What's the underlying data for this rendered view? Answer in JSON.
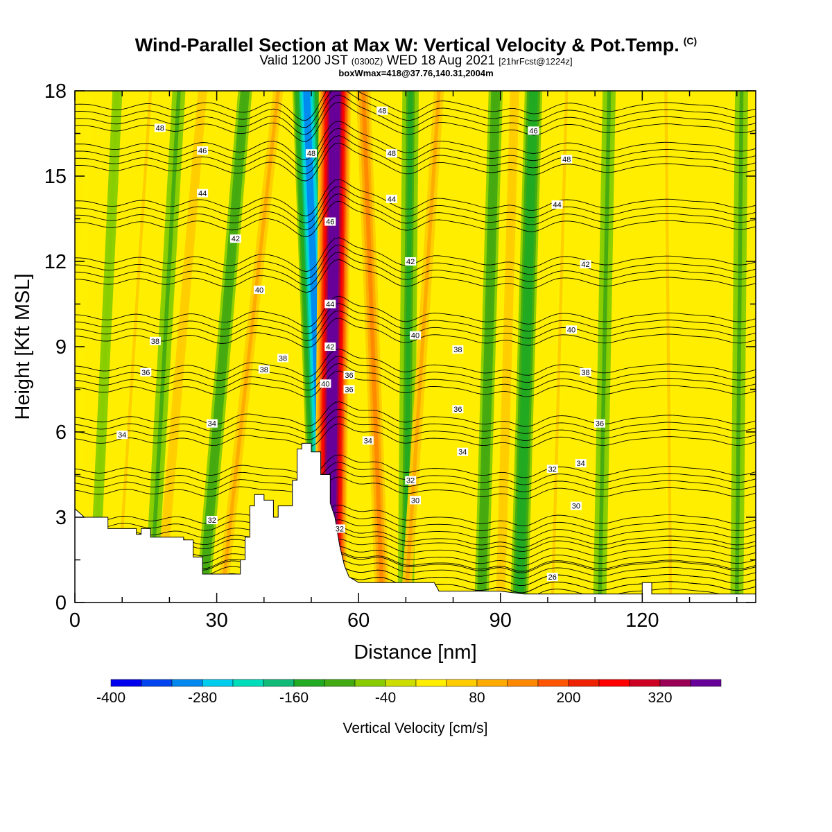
{
  "title": {
    "line1": "Wind-Parallel Section at Max W: Vertical Velocity & Pot.Temp.",
    "copyright": "(C)",
    "line2_a": "Valid 1200 JST",
    "line2_b": "(0300Z)",
    "line2_c": "WED 18 Aug 2021",
    "line2_d": "[21hrFcst@1224z]",
    "line3": "boxWmax=418@37.76,140.31,2004m"
  },
  "chart_data": {
    "type": "heatmap",
    "xlabel": "Distance [nm]",
    "ylabel": "Height [Kft MSL]",
    "xlim": [
      0,
      144
    ],
    "ylim": [
      0,
      18
    ],
    "x_ticks": [
      0,
      30,
      60,
      90,
      120
    ],
    "y_ticks": [
      0,
      3,
      6,
      9,
      12,
      15,
      18
    ],
    "colorbar": {
      "label": "Vertical Velocity [cm/s]",
      "range": [
        -400,
        400
      ],
      "tick_labels": [
        -400,
        -280,
        -160,
        -40,
        80,
        200,
        320
      ],
      "colors": [
        "#0000ee",
        "#0044ee",
        "#0088ee",
        "#00ccee",
        "#00ddbb",
        "#11bb77",
        "#22aa22",
        "#44aa11",
        "#88cc00",
        "#ccdd00",
        "#ffee00",
        "#ffcc00",
        "#ffaa00",
        "#ff8800",
        "#ff5500",
        "#ee2200",
        "#ff0000",
        "#cc0022",
        "#990055",
        "#660099"
      ]
    },
    "terrain_kft": [
      [
        0,
        3.3
      ],
      [
        2,
        3.0
      ],
      [
        7,
        3.0
      ],
      [
        7,
        2.6
      ],
      [
        13,
        2.6
      ],
      [
        13,
        2.4
      ],
      [
        14,
        2.4
      ],
      [
        14,
        2.6
      ],
      [
        16,
        2.6
      ],
      [
        16,
        2.3
      ],
      [
        23,
        2.3
      ],
      [
        23,
        2.2
      ],
      [
        25,
        2.2
      ],
      [
        25,
        1.6
      ],
      [
        27,
        1.6
      ],
      [
        27,
        1.0
      ],
      [
        35,
        1.0
      ],
      [
        35,
        1.5
      ],
      [
        36,
        1.5
      ],
      [
        36,
        2.3
      ],
      [
        37,
        2.3
      ],
      [
        37,
        3.4
      ],
      [
        38,
        3.4
      ],
      [
        38,
        3.8
      ],
      [
        40,
        3.8
      ],
      [
        40,
        3.6
      ],
      [
        42,
        3.6
      ],
      [
        42,
        3.0
      ],
      [
        43,
        3.0
      ],
      [
        43,
        3.4
      ],
      [
        46,
        3.4
      ],
      [
        46,
        4.3
      ],
      [
        47,
        4.3
      ],
      [
        47,
        5.4
      ],
      [
        48,
        5.4
      ],
      [
        48,
        5.6
      ],
      [
        50,
        5.6
      ],
      [
        50,
        5.3
      ],
      [
        52,
        5.3
      ],
      [
        52,
        4.5
      ],
      [
        54,
        4.5
      ],
      [
        54,
        3.5
      ],
      [
        55,
        3.0
      ],
      [
        56,
        2.0
      ],
      [
        57,
        1.3
      ],
      [
        58,
        0.9
      ],
      [
        60,
        0.7
      ],
      [
        65,
        0.7
      ],
      [
        68,
        0.7
      ],
      [
        72,
        0.7
      ],
      [
        76,
        0.7
      ],
      [
        77,
        0.4
      ],
      [
        84,
        0.4
      ],
      [
        90,
        0.4
      ],
      [
        95,
        0.3
      ],
      [
        100,
        0.3
      ],
      [
        110,
        0.3
      ],
      [
        120,
        0.3
      ],
      [
        120,
        0.7
      ],
      [
        122,
        0.7
      ],
      [
        122,
        0.3
      ],
      [
        144,
        0.3
      ]
    ],
    "updraft_bands": [
      {
        "x_top": 3,
        "x_bottom": 0,
        "w": 20
      },
      {
        "x_top": 16,
        "x_bottom": 9,
        "w": 40
      },
      {
        "x_top": 27,
        "x_bottom": 18,
        "w": 60
      },
      {
        "x_top": 43,
        "x_bottom": 31,
        "w": 80
      },
      {
        "x_top": 55,
        "x_bottom": 54,
        "w": 400
      },
      {
        "x_top": 61,
        "x_bottom": 65,
        "w": 120
      },
      {
        "x_top": 77,
        "x_bottom": 70,
        "w": 80
      },
      {
        "x_top": 93,
        "x_bottom": 90,
        "w": 60
      },
      {
        "x_top": 104,
        "x_bottom": 101,
        "w": 40
      },
      {
        "x_top": 125,
        "x_bottom": 126,
        "w": 40
      }
    ],
    "downdraft_bands": [
      {
        "x_top": 9,
        "x_bottom": 4,
        "w": -80
      },
      {
        "x_top": 22,
        "x_bottom": 16,
        "w": -100
      },
      {
        "x_top": 36,
        "x_bottom": 27,
        "w": -120
      },
      {
        "x_top": 49,
        "x_bottom": 53,
        "w": -300
      },
      {
        "x_top": 71,
        "x_bottom": 70,
        "w": -140
      },
      {
        "x_top": 89,
        "x_bottom": 86,
        "w": -120
      },
      {
        "x_top": 97,
        "x_bottom": 94,
        "w": -160
      },
      {
        "x_top": 113,
        "x_bottom": 111,
        "w": -100
      },
      {
        "x_top": 141,
        "x_bottom": 140,
        "w": -100
      }
    ],
    "isentrope_levels": [
      {
        "theta": 26,
        "y0": 0.4
      },
      {
        "theta": 28,
        "y0": 0.9
      },
      {
        "theta": 30,
        "y0": 1.6
      },
      {
        "theta": 32,
        "y0": 2.5
      },
      {
        "theta": 34,
        "y0": 4.2
      },
      {
        "theta": 36,
        "y0": 6.0
      },
      {
        "theta": 38,
        "y0": 7.8
      },
      {
        "theta": 40,
        "y0": 9.6
      },
      {
        "theta": 42,
        "y0": 11.6
      },
      {
        "theta": 44,
        "y0": 13.6
      },
      {
        "theta": 46,
        "y0": 15.6
      },
      {
        "theta": 48,
        "y0": 17.0
      }
    ],
    "contour_labels": [
      {
        "text": "48",
        "x": 18,
        "y": 16.7
      },
      {
        "text": "46",
        "x": 27,
        "y": 15.9
      },
      {
        "text": "44",
        "x": 27,
        "y": 14.4
      },
      {
        "text": "42",
        "x": 34,
        "y": 12.8
      },
      {
        "text": "40",
        "x": 39,
        "y": 11.0
      },
      {
        "text": "38",
        "x": 17,
        "y": 9.2
      },
      {
        "text": "38",
        "x": 44,
        "y": 8.6
      },
      {
        "text": "38",
        "x": 40,
        "y": 8.2
      },
      {
        "text": "36",
        "x": 15,
        "y": 8.1
      },
      {
        "text": "34",
        "x": 29,
        "y": 6.3
      },
      {
        "text": "34",
        "x": 10,
        "y": 5.9
      },
      {
        "text": "32",
        "x": 29,
        "y": 2.9
      },
      {
        "text": "48",
        "x": 50,
        "y": 15.8
      },
      {
        "text": "46",
        "x": 54,
        "y": 13.4
      },
      {
        "text": "44",
        "x": 54,
        "y": 10.5
      },
      {
        "text": "42",
        "x": 54,
        "y": 9.0
      },
      {
        "text": "40",
        "x": 53,
        "y": 7.7
      },
      {
        "text": "36",
        "x": 58,
        "y": 8.0
      },
      {
        "text": "36",
        "x": 58,
        "y": 7.5
      },
      {
        "text": "34",
        "x": 62,
        "y": 5.7
      },
      {
        "text": "32",
        "x": 56,
        "y": 2.6
      },
      {
        "text": "48",
        "x": 65,
        "y": 17.3
      },
      {
        "text": "48",
        "x": 67,
        "y": 15.8
      },
      {
        "text": "44",
        "x": 67,
        "y": 14.2
      },
      {
        "text": "42",
        "x": 71,
        "y": 12.0
      },
      {
        "text": "40",
        "x": 72,
        "y": 9.4
      },
      {
        "text": "38",
        "x": 81,
        "y": 8.9
      },
      {
        "text": "36",
        "x": 81,
        "y": 6.8
      },
      {
        "text": "34",
        "x": 82,
        "y": 5.3
      },
      {
        "text": "32",
        "x": 71,
        "y": 4.3
      },
      {
        "text": "30",
        "x": 72,
        "y": 3.6
      },
      {
        "text": "46",
        "x": 97,
        "y": 16.6
      },
      {
        "text": "48",
        "x": 104,
        "y": 15.6
      },
      {
        "text": "44",
        "x": 102,
        "y": 14.0
      },
      {
        "text": "42",
        "x": 108,
        "y": 11.9
      },
      {
        "text": "40",
        "x": 105,
        "y": 9.6
      },
      {
        "text": "38",
        "x": 108,
        "y": 8.1
      },
      {
        "text": "36",
        "x": 111,
        "y": 6.3
      },
      {
        "text": "34",
        "x": 107,
        "y": 4.9
      },
      {
        "text": "32",
        "x": 101,
        "y": 4.7
      },
      {
        "text": "30",
        "x": 106,
        "y": 3.4
      },
      {
        "text": "26",
        "x": 101,
        "y": 0.9
      }
    ]
  }
}
